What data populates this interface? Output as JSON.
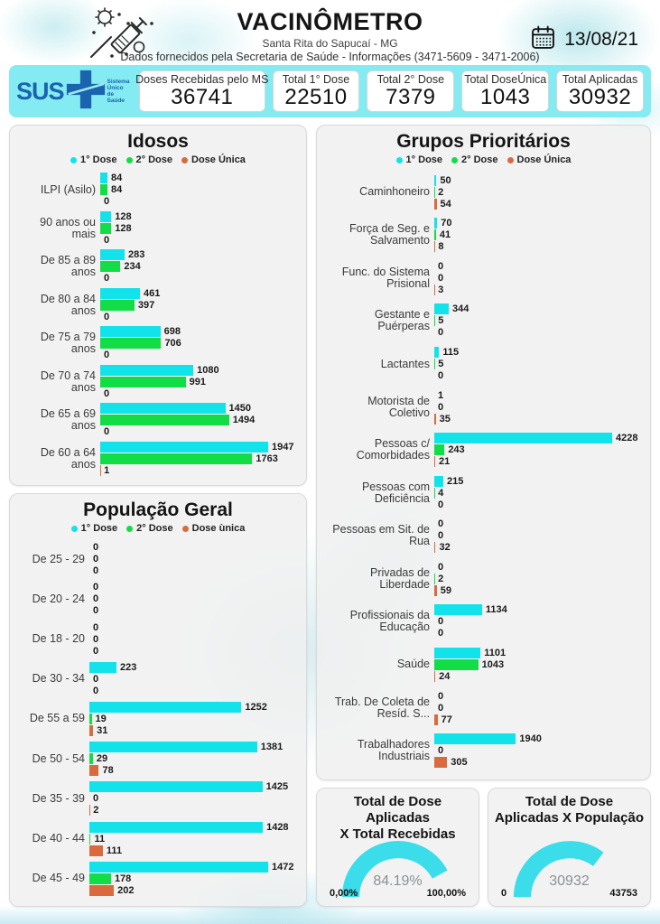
{
  "header": {
    "title": "VACINÔMETRO",
    "subtitle": "Santa Rita do Sapucaí - MG",
    "info": "Dados fornecidos pela Secretaria de Saúde - Informações (3471-5609 - 3471-2006)",
    "date": "13/08/21"
  },
  "sus_logo": {
    "acronym": "SUS",
    "caption_lines": [
      "Sistema",
      "Único",
      "de Saúde"
    ]
  },
  "stats": {
    "cards": [
      {
        "label": "Doses Recebidas pelo MS",
        "value": "36741"
      },
      {
        "label": "Total 1° Dose",
        "value": "22510"
      },
      {
        "label": "Total 2° Dose",
        "value": "7379"
      },
      {
        "label": "Total DoseÚnica",
        "value": "1043"
      },
      {
        "label": "Total Aplicadas",
        "value": "30932"
      }
    ]
  },
  "colors": {
    "dose1": "#12e2ea",
    "dose2": "#12dd47",
    "dose_unica": "#d96a3d",
    "statsbar_bg": "#85ebf3",
    "gauge_arc": "#3adde9",
    "sus_blue": "#1a63ad"
  },
  "chart_data": [
    {
      "id": "idosos",
      "type": "bar",
      "orientation": "horizontal",
      "title": "Idosos",
      "legend": [
        "1° Dose",
        "2° Dose",
        "Dose Única"
      ],
      "categories": [
        "ILPI (Asilo)",
        "90 anos ou mais",
        "De 85 a 89 anos",
        "De 80 a 84 anos",
        "De 75 a 79 anos",
        "De 70 a 74 anos",
        "De 65 a 69 anos",
        "De 60 a 64 anos"
      ],
      "series": [
        {
          "name": "1° Dose",
          "values": [
            84,
            128,
            283,
            461,
            698,
            1080,
            1450,
            1947
          ]
        },
        {
          "name": "2° Dose",
          "values": [
            84,
            128,
            234,
            397,
            706,
            991,
            1494,
            1763
          ]
        },
        {
          "name": "Dose Única",
          "values": [
            0,
            0,
            0,
            0,
            0,
            0,
            0,
            1
          ]
        }
      ],
      "xlim": [
        0,
        1947
      ]
    },
    {
      "id": "grupos",
      "type": "bar",
      "orientation": "horizontal",
      "title": "Grupos Prioritários",
      "legend": [
        "1° Dose",
        "2° Dose",
        "Dose Única"
      ],
      "categories": [
        "Caminhoneiro",
        "Força de Seg. e Salvamento",
        "Func. do Sistema Prisional",
        "Gestante e Puérperas",
        "Lactantes",
        "Motorista de Coletivo",
        "Pessoas c/ Comorbidades",
        "Pessoas com Deficiência",
        "Pessoas em Sit. de Rua",
        "Privadas de Liberdade",
        "Profissionais da Educação",
        "Saúde",
        "Trab. De Coleta de Resíd. S...",
        "Trabalhadores Industriais"
      ],
      "series": [
        {
          "name": "1° Dose",
          "values": [
            50,
            70,
            0,
            344,
            115,
            1,
            4228,
            215,
            0,
            0,
            1134,
            1101,
            0,
            1940
          ]
        },
        {
          "name": "2° Dose",
          "values": [
            2,
            41,
            0,
            5,
            5,
            0,
            243,
            4,
            0,
            2,
            0,
            1043,
            0,
            0
          ]
        },
        {
          "name": "Dose Única",
          "values": [
            54,
            8,
            3,
            0,
            0,
            35,
            21,
            0,
            32,
            59,
            0,
            24,
            77,
            305
          ]
        }
      ],
      "xlim": [
        0,
        4228
      ]
    },
    {
      "id": "populacao",
      "type": "bar",
      "orientation": "horizontal",
      "title": "População Geral",
      "legend": [
        "1° Dose",
        "2° Dose",
        "Dose ùnica"
      ],
      "categories": [
        "De 25 - 29",
        "De 20 - 24",
        "De 18 - 20",
        "De 30 - 34",
        "De 55 a 59",
        "De 50 - 54",
        "De 35 - 39",
        "De 40 - 44",
        "De 45 - 49"
      ],
      "series": [
        {
          "name": "1° Dose",
          "values": [
            0,
            0,
            0,
            223,
            1252,
            1381,
            1425,
            1428,
            1472
          ]
        },
        {
          "name": "2° Dose",
          "values": [
            0,
            0,
            0,
            0,
            19,
            29,
            0,
            11,
            178
          ]
        },
        {
          "name": "Dose ùnica",
          "values": [
            0,
            0,
            0,
            0,
            31,
            78,
            2,
            111,
            202
          ]
        }
      ],
      "xlim": [
        0,
        1472
      ]
    },
    {
      "id": "gauge1",
      "type": "gauge",
      "title_lines": [
        "Total de Dose Aplicadas",
        "X Total Recebidas"
      ],
      "value_label": "84.19%",
      "pct": 84.19,
      "min_label": "0,00%",
      "max_label": "100,00%"
    },
    {
      "id": "gauge2",
      "type": "gauge",
      "title_lines": [
        "Total de Dose",
        "Aplicadas X População"
      ],
      "value_label": "30932",
      "pct": 70.69,
      "min_label": "0",
      "max_label": "43753"
    }
  ]
}
